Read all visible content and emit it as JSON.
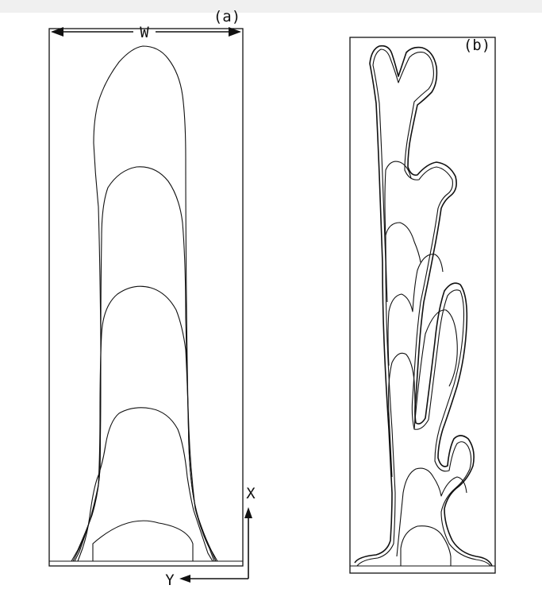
{
  "figure": {
    "panel_a": {
      "label": "(a)",
      "width_symbol": "W",
      "axis_x_label": "X",
      "axis_y_label": "Y"
    },
    "panel_b": {
      "label": "(b)"
    }
  }
}
